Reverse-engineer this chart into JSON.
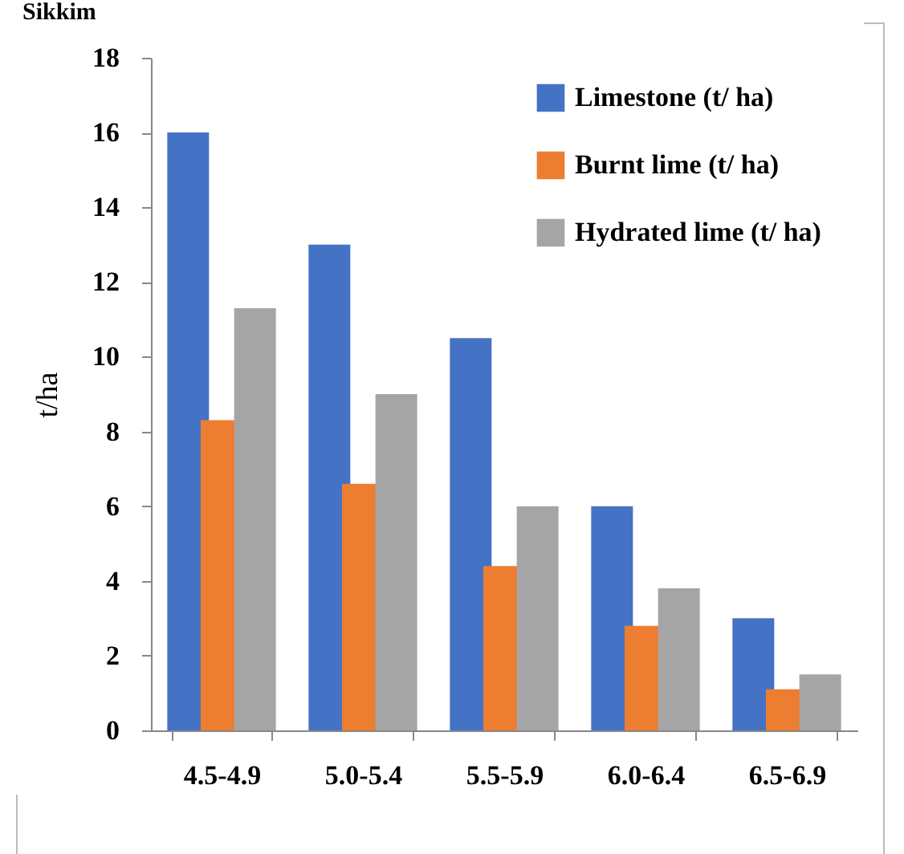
{
  "chart_data": {
    "type": "bar",
    "title": "Sikkim",
    "ylabel": "t/ha",
    "categories": [
      "4.5-4.9",
      "5.0-5.4",
      "5.5-5.9",
      "6.0-6.4",
      "6.5-6.9"
    ],
    "series": [
      {
        "name": "Limestone (t/ ha)",
        "color": "#4472c4",
        "values": [
          16,
          13,
          10.5,
          6,
          3
        ]
      },
      {
        "name": "Burnt lime (t/ ha)",
        "color": "#ed7d31",
        "values": [
          8.3,
          6.6,
          4.4,
          2.8,
          1.1
        ]
      },
      {
        "name": "Hydrated lime (t/ ha)",
        "color": "#a5a5a5",
        "values": [
          11.3,
          9,
          6,
          3.8,
          1.5
        ]
      }
    ],
    "ylim": [
      0,
      18
    ],
    "yticks": [
      0,
      2,
      4,
      6,
      8,
      10,
      12,
      14,
      16,
      18
    ],
    "grid": false,
    "legend": "top right"
  }
}
